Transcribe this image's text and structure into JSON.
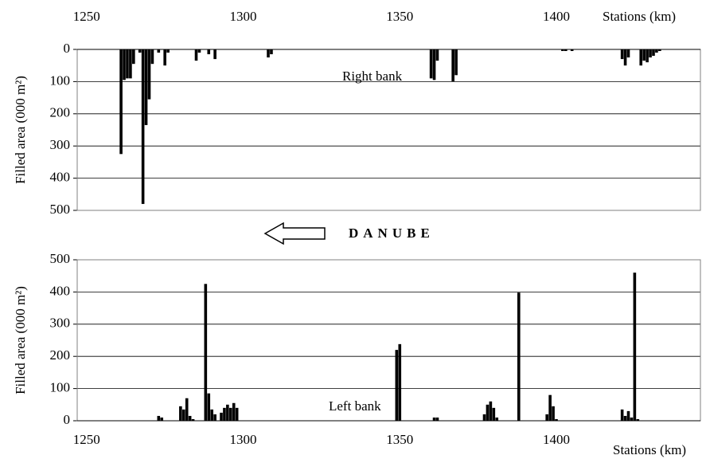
{
  "direction_label": "DANUBE",
  "chart_data": [
    {
      "type": "bar",
      "annotation": "Right bank",
      "ylabel": "Filled area (000 m²)",
      "xlabel": "Stations (km)",
      "xaxis_position": "top",
      "y_inverted": true,
      "grid": true,
      "color": "#000000",
      "xlim": [
        1247,
        1446
      ],
      "xticks": [
        1250,
        1300,
        1350,
        1400
      ],
      "ylim": [
        0,
        500
      ],
      "yticks": [
        0,
        100,
        200,
        300,
        400,
        500
      ],
      "x": [
        1261,
        1262,
        1263,
        1264,
        1265,
        1267,
        1268,
        1269,
        1270,
        1271,
        1273,
        1275,
        1276,
        1285,
        1286,
        1289,
        1291,
        1308,
        1309,
        1360,
        1361,
        1362,
        1367,
        1368,
        1402,
        1403,
        1405,
        1421,
        1422,
        1423,
        1427,
        1428,
        1429,
        1430,
        1431,
        1432,
        1433
      ],
      "values": [
        325,
        95,
        90,
        90,
        45,
        10,
        480,
        235,
        155,
        45,
        10,
        50,
        10,
        35,
        10,
        15,
        30,
        25,
        15,
        90,
        95,
        35,
        100,
        80,
        5,
        5,
        5,
        30,
        50,
        25,
        50,
        35,
        40,
        25,
        20,
        10,
        5
      ]
    },
    {
      "type": "bar",
      "annotation": "Left bank",
      "ylabel": "Filled area (000 m²)",
      "xlabel": "Stations (km)",
      "xaxis_position": "bottom",
      "y_inverted": false,
      "grid": true,
      "color": "#000000",
      "xlim": [
        1247,
        1446
      ],
      "xticks": [
        1250,
        1300,
        1350,
        1400
      ],
      "ylim": [
        0,
        500
      ],
      "yticks": [
        0,
        100,
        200,
        300,
        400,
        500
      ],
      "x": [
        1273,
        1274,
        1280,
        1281,
        1282,
        1283,
        1284,
        1288,
        1289,
        1290,
        1291,
        1293,
        1294,
        1295,
        1296,
        1297,
        1298,
        1349,
        1350,
        1361,
        1362,
        1377,
        1378,
        1379,
        1380,
        1381,
        1388,
        1397,
        1398,
        1399,
        1400,
        1421,
        1422,
        1423,
        1424,
        1425,
        1426
      ],
      "values": [
        15,
        10,
        45,
        35,
        70,
        15,
        5,
        425,
        85,
        35,
        20,
        25,
        40,
        50,
        40,
        55,
        40,
        220,
        238,
        10,
        10,
        20,
        50,
        60,
        40,
        10,
        398,
        20,
        80,
        45,
        5,
        35,
        15,
        30,
        10,
        460,
        5
      ]
    }
  ]
}
